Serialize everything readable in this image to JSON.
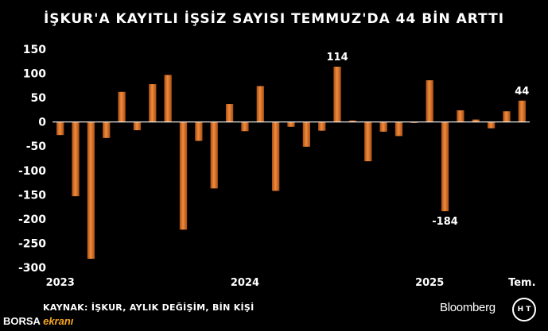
{
  "header": {
    "title": "İŞKUR'A KAYITLI İŞSİZ SAYISI TEMMUZ'DA 44 BİN ARTTI"
  },
  "footer": {
    "source": "KAYNAK: İŞKUR, AYLIK DEĞİŞİM, BİN KİŞİ",
    "bloomberg": "Bloomberg",
    "ht_logo": "H T",
    "borsa": "BORSA",
    "ekrani": "ekranı"
  },
  "colors": {
    "bar_fill": "#c8641e",
    "bar_highlight": "#f08c3c",
    "background": "#000000",
    "text": "#ffffff",
    "baseline": "#ffffff"
  },
  "chart_data": {
    "type": "bar",
    "title": "İŞKUR'A KAYITLI İŞSİZ SAYISI TEMMUZ'DA 44 BİN ARTTI",
    "xlabel": "",
    "ylabel": "",
    "ylim": [
      -300,
      150
    ],
    "yticks": [
      150,
      100,
      50,
      0,
      -50,
      -100,
      -150,
      -200,
      -250,
      -300
    ],
    "grid": false,
    "x_tick_labels": [
      {
        "label": "2023",
        "index": 0
      },
      {
        "label": "2024",
        "index": 12
      },
      {
        "label": "2025",
        "index": 24
      },
      {
        "label": "Tem.",
        "index": 30
      }
    ],
    "values": [
      -27,
      -153,
      -282,
      -33,
      62,
      -17,
      78,
      97,
      -222,
      -39,
      -137,
      37,
      -19,
      74,
      -142,
      -10,
      -51,
      -18,
      114,
      3,
      -81,
      -20,
      -29,
      -2,
      86,
      -184,
      24,
      5,
      -13,
      22,
      44
    ],
    "annotations": [
      {
        "index": 18,
        "text": "114"
      },
      {
        "index": 25,
        "text": "-184"
      },
      {
        "index": 30,
        "text": "44"
      }
    ]
  }
}
